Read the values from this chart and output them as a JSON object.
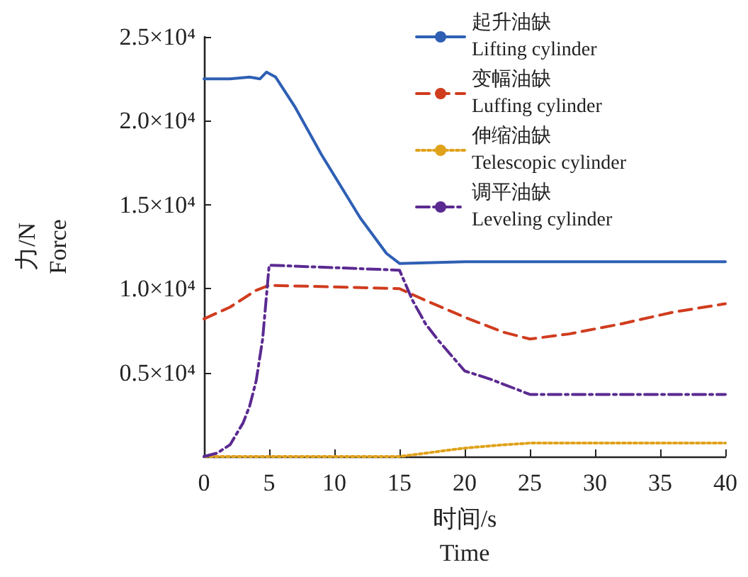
{
  "chart_data": {
    "type": "line",
    "xlabel": "时间/s\nTime",
    "ylabel": "力/N\nForce",
    "xlim": [
      0,
      40
    ],
    "xticks": [
      0,
      5,
      10,
      15,
      20,
      25,
      30,
      35,
      40
    ],
    "ylim": [
      0,
      25000
    ],
    "yticks": [
      {
        "value": 5000,
        "label": "0.5×10⁴"
      },
      {
        "value": 10000,
        "label": "1.0×10⁴"
      },
      {
        "value": 15000,
        "label": "1.5×10⁴"
      },
      {
        "value": 20000,
        "label": "2.0×10⁴"
      },
      {
        "value": 25000,
        "label": "2.5×10⁴"
      }
    ],
    "grid": false,
    "legend": "top right",
    "marker": "none",
    "series": [
      {
        "name": "起升油缺\nLifting cylinder",
        "color": "#2e5fb4",
        "line_style": "solid",
        "x": [
          0,
          2,
          3.5,
          4.3,
          4.8,
          5.5,
          7,
          9,
          10.5,
          12,
          14,
          15,
          20,
          30,
          40
        ],
        "values": [
          22500,
          22500,
          22600,
          22500,
          22900,
          22600,
          20800,
          18000,
          16100,
          14200,
          12100,
          11500,
          11600,
          11600,
          11600
        ]
      },
      {
        "name": "变幅油缺\nLuffing cylinder",
        "color": "#d03c1e",
        "line_style": "dashed",
        "x": [
          0,
          2,
          4,
          5,
          10,
          15,
          17,
          20,
          23,
          25,
          28,
          32,
          36,
          40
        ],
        "values": [
          8200,
          8900,
          9900,
          10200,
          10100,
          10000,
          9300,
          8300,
          7400,
          7000,
          7300,
          7900,
          8600,
          9100
        ]
      },
      {
        "name": "伸缩油缺\nTelescopic cylinder",
        "color": "#e0a21b",
        "line_style": "dotted",
        "x": [
          0,
          15,
          18,
          20,
          23,
          25,
          40
        ],
        "values": [
          0,
          0,
          300,
          500,
          700,
          800,
          800
        ]
      },
      {
        "name": "调平油缺\nLeveling cylinder",
        "color": "#5b2a91",
        "line_style": "dashdot",
        "x": [
          0,
          1,
          2,
          3,
          3.5,
          4,
          4.5,
          5,
          15,
          16,
          17,
          18,
          20,
          22,
          25,
          40
        ],
        "values": [
          0,
          200,
          700,
          2000,
          3000,
          4500,
          7000,
          11400,
          11100,
          9300,
          7900,
          6900,
          5100,
          4600,
          3700,
          3700
        ]
      }
    ]
  }
}
